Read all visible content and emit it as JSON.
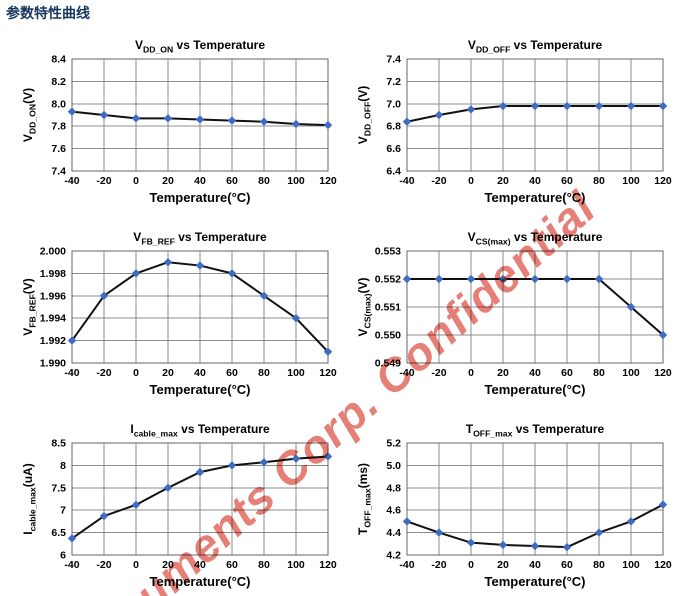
{
  "page": {
    "title": "参数特性曲线"
  },
  "watermark": {
    "text": "uments Corp. Confidential",
    "color": "#e2685e"
  },
  "colors": {
    "heading": "#17365d",
    "marker_fill": "#3e6cc4",
    "data_line": "#111111",
    "gridline": "#8c8c8c",
    "plot_border": "#666666"
  },
  "chart_data": [
    {
      "type": "line",
      "title": {
        "sym": "V",
        "sub": "DD_ON",
        "rest": " vs Temperature"
      },
      "ylabel": {
        "sym": "V",
        "sub": "DD_ON",
        "unit": "(V)"
      },
      "xlabel": "Temperature(°C)",
      "x": [
        -40,
        -20,
        0,
        20,
        40,
        60,
        80,
        100,
        120
      ],
      "values": [
        7.93,
        7.9,
        7.87,
        7.87,
        7.86,
        7.85,
        7.84,
        7.82,
        7.81
      ],
      "y_ticks": [
        "8.4",
        "8.2",
        "8.0",
        "7.8",
        "7.6",
        "7.4"
      ],
      "ylim": [
        7.4,
        8.4
      ],
      "grid": true,
      "legend": "none"
    },
    {
      "type": "line",
      "title": {
        "sym": "V",
        "sub": "DD_OFF",
        "rest": " vs Temperature"
      },
      "ylabel": {
        "sym": "V",
        "sub": "DD_OFF",
        "unit": "(V)"
      },
      "xlabel": "Temperature(°C)",
      "x": [
        -40,
        -20,
        0,
        20,
        40,
        60,
        80,
        100,
        120
      ],
      "values": [
        6.84,
        6.9,
        6.95,
        6.98,
        6.98,
        6.98,
        6.98,
        6.98,
        6.98
      ],
      "y_ticks": [
        "7.4",
        "7.2",
        "7.0",
        "6.8",
        "6.6",
        "6.4"
      ],
      "ylim": [
        6.4,
        7.4
      ],
      "grid": true,
      "legend": "none"
    },
    {
      "type": "line",
      "title": {
        "sym": "V",
        "sub": "FB_REF",
        "rest": " vs Temperature"
      },
      "ylabel": {
        "sym": "V",
        "sub": "FB_REF",
        "unit": "(V)"
      },
      "xlabel": "Temperature(°C)",
      "x": [
        -40,
        -20,
        0,
        20,
        40,
        60,
        80,
        100,
        120
      ],
      "values": [
        1.992,
        1.996,
        1.998,
        1.999,
        1.9987,
        1.998,
        1.996,
        1.994,
        1.991
      ],
      "y_ticks": [
        "2.000",
        "1.998",
        "1.996",
        "1.994",
        "1.992",
        "1.990"
      ],
      "ylim": [
        1.99,
        2.0
      ],
      "grid": true,
      "legend": "none"
    },
    {
      "type": "line",
      "title": {
        "sym": "V",
        "sub": "CS(max)",
        "rest": " vs Temperature"
      },
      "ylabel": {
        "sym": "V",
        "sub": "CS(max)",
        "unit": "(V)"
      },
      "xlabel": "Temperature(°C)",
      "x": [
        -40,
        -20,
        0,
        20,
        40,
        60,
        80,
        100,
        120
      ],
      "values": [
        0.552,
        0.552,
        0.552,
        0.552,
        0.552,
        0.552,
        0.552,
        0.551,
        0.55
      ],
      "y_ticks": [
        "0.553",
        "0.552",
        "0.551",
        "0.550",
        "0.549"
      ],
      "ylim": [
        0.549,
        0.553
      ],
      "grid": true,
      "legend": "none"
    },
    {
      "type": "line",
      "title": {
        "sym": "I",
        "sub": "cable_max",
        "rest": " vs Temperature"
      },
      "ylabel": {
        "sym": "I",
        "sub": "cable_max",
        "unit": "(uA)"
      },
      "xlabel": "Temperature(°C)",
      "x": [
        -40,
        -20,
        0,
        20,
        40,
        60,
        80,
        100,
        120
      ],
      "values": [
        6.37,
        6.87,
        7.12,
        7.5,
        7.85,
        8.0,
        8.07,
        8.15,
        8.2
      ],
      "y_ticks": [
        "8.5",
        "8",
        "7.5",
        "7",
        "6.5",
        "6"
      ],
      "ylim": [
        6.0,
        8.5
      ],
      "grid": true,
      "legend": "none"
    },
    {
      "type": "line",
      "title": {
        "sym": "T",
        "sub": "OFF_max",
        "rest": " vs Temperature"
      },
      "ylabel": {
        "sym": "T",
        "sub": "OFF_max",
        "unit": "(ms)"
      },
      "xlabel": "Temperature(°C)",
      "x": [
        -40,
        -20,
        0,
        20,
        40,
        60,
        80,
        100,
        120
      ],
      "values": [
        4.5,
        4.4,
        4.31,
        4.29,
        4.28,
        4.27,
        4.4,
        4.5,
        4.65
      ],
      "y_ticks": [
        "5.2",
        "5.0",
        "4.8",
        "4.6",
        "4.4",
        "4.2"
      ],
      "ylim": [
        4.2,
        5.2
      ],
      "grid": true,
      "legend": "none"
    }
  ]
}
